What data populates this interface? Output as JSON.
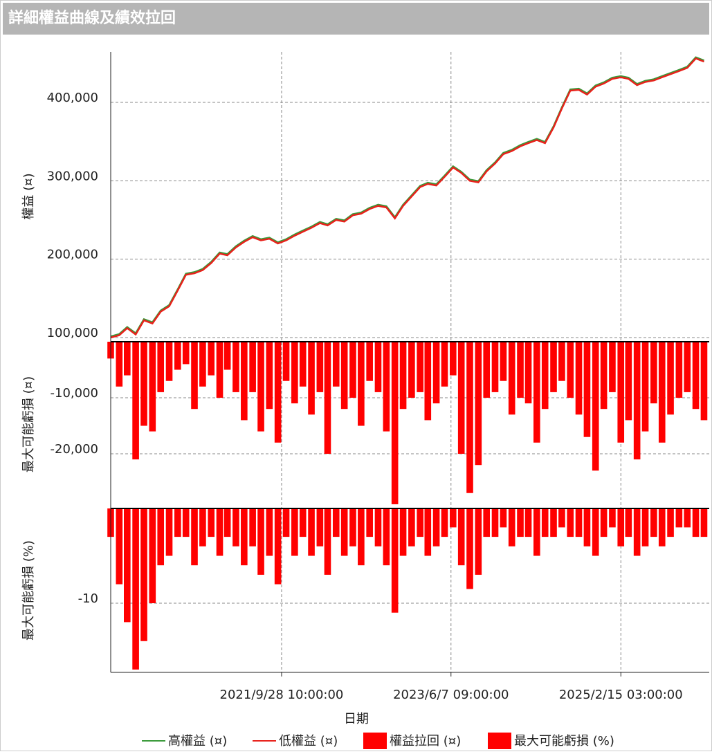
{
  "title": "詳細權益曲線及績效拉回",
  "chart_data": [
    {
      "type": "line",
      "ylabel": "權益 (¤)",
      "x": [
        "2020-01-15T00:00",
        "2020-02-15T00:00",
        "2020-03-15T00:00",
        "2020-04-15T00:00",
        "2020-05-15T00:00",
        "2020-06-15T00:00",
        "2020-07-15T00:00",
        "2020-08-15T00:00",
        "2020-09-15T00:00",
        "2020-10-15T00:00",
        "2020-11-15T00:00",
        "2020-12-15T00:00",
        "2021-01-15T00:00",
        "2021-02-15T00:00",
        "2021-03-15T00:00",
        "2021-04-15T00:00",
        "2021-05-15T00:00",
        "2021-06-15T00:00",
        "2021-07-15T00:00",
        "2021-08-15T00:00",
        "2021-09-15T00:00",
        "2021-10-15T00:00",
        "2021-11-15T00:00",
        "2021-12-15T00:00",
        "2022-01-15T00:00",
        "2022-02-15T00:00",
        "2022-03-15T00:00",
        "2022-04-15T00:00",
        "2022-05-15T00:00",
        "2022-06-15T00:00",
        "2022-07-15T00:00",
        "2022-08-15T00:00",
        "2022-09-15T00:00",
        "2022-10-15T00:00",
        "2022-11-15T00:00",
        "2022-12-15T00:00",
        "2023-01-15T00:00",
        "2023-02-15T00:00",
        "2023-03-15T00:00",
        "2023-04-15T00:00",
        "2023-05-15T00:00",
        "2023-06-15T00:00",
        "2023-07-15T00:00",
        "2023-08-15T00:00",
        "2023-09-15T00:00",
        "2023-10-15T00:00",
        "2023-11-15T00:00",
        "2023-12-15T00:00",
        "2024-01-15T00:00",
        "2024-02-15T00:00",
        "2024-03-15T00:00",
        "2024-04-15T00:00",
        "2024-05-15T00:00",
        "2024-06-15T00:00",
        "2024-07-15T00:00",
        "2024-08-15T00:00",
        "2024-09-15T00:00",
        "2024-10-15T00:00",
        "2024-11-15T00:00",
        "2024-12-15T00:00",
        "2025-01-15T00:00",
        "2025-02-15T00:00",
        "2025-03-15T00:00",
        "2025-04-15T00:00",
        "2025-05-15T00:00",
        "2025-06-15T00:00",
        "2025-07-15T00:00",
        "2025-08-15T00:00",
        "2025-09-15T00:00",
        "2025-10-15T00:00",
        "2025-11-15T00:00",
        "2025-12-15T00:00"
      ],
      "series": [
        {
          "name": "高權益 (¤)",
          "color": "#3a9a3a",
          "values": [
            101500,
            104500,
            113500,
            105500,
            123500,
            119500,
            134500,
            141500,
            161500,
            181500,
            183500,
            187500,
            196500,
            208500,
            206500,
            216500,
            223500,
            229500,
            225500,
            227500,
            221500,
            225500,
            231500,
            236500,
            241500,
            247500,
            244500,
            251500,
            249500,
            257500,
            259500,
            265500,
            269500,
            267500,
            253500,
            269500,
            281500,
            293500,
            297500,
            295500,
            306500,
            318500,
            311500,
            301500,
            299500,
            313500,
            323500,
            335500,
            339500,
            345500,
            349500,
            353500,
            349500,
            369500,
            393500,
            416500,
            417500,
            411500,
            421500,
            425500,
            431500,
            433500,
            431500,
            423500,
            427500,
            429500,
            433500,
            437500,
            441500,
            445500,
            457500,
            453500
          ]
        },
        {
          "name": "低權益 (¤)",
          "color": "#e8211b",
          "values": [
            100000,
            103000,
            112000,
            104000,
            122000,
            118000,
            133000,
            140000,
            160000,
            180000,
            182000,
            186000,
            195000,
            207000,
            205000,
            215000,
            222000,
            228000,
            224000,
            226000,
            220000,
            224000,
            230000,
            235000,
            240000,
            246000,
            243000,
            250000,
            248000,
            256000,
            258000,
            264000,
            268000,
            266000,
            252000,
            268000,
            280000,
            292000,
            296000,
            294000,
            305000,
            317000,
            310000,
            300000,
            298000,
            312000,
            322000,
            334000,
            338000,
            344000,
            348000,
            352000,
            348000,
            368000,
            392000,
            415000,
            416000,
            410000,
            420000,
            424000,
            430000,
            432000,
            430000,
            422000,
            426000,
            428000,
            432000,
            436000,
            440000,
            444000,
            456000,
            452000
          ]
        }
      ],
      "ylim": [
        95600,
        464400
      ],
      "yticks": [
        {
          "value": 100000,
          "label": "100,000"
        },
        {
          "value": 200000,
          "label": "200,000"
        },
        {
          "value": 300000,
          "label": "300,000"
        },
        {
          "value": 400000,
          "label": "400,000"
        }
      ]
    },
    {
      "type": "bar",
      "ylabel": "最大可能虧損 (¤)",
      "x": [
        "2020-01-15T00:00",
        "2020-02-15T00:00",
        "2020-03-15T00:00",
        "2020-04-15T00:00",
        "2020-05-15T00:00",
        "2020-06-15T00:00",
        "2020-07-15T00:00",
        "2020-08-15T00:00",
        "2020-09-15T00:00",
        "2020-10-15T00:00",
        "2020-11-15T00:00",
        "2020-12-15T00:00",
        "2021-01-15T00:00",
        "2021-02-15T00:00",
        "2021-03-15T00:00",
        "2021-04-15T00:00",
        "2021-05-15T00:00",
        "2021-06-15T00:00",
        "2021-07-15T00:00",
        "2021-08-15T00:00",
        "2021-09-15T00:00",
        "2021-10-15T00:00",
        "2021-11-15T00:00",
        "2021-12-15T00:00",
        "2022-01-15T00:00",
        "2022-02-15T00:00",
        "2022-03-15T00:00",
        "2022-04-15T00:00",
        "2022-05-15T00:00",
        "2022-06-15T00:00",
        "2022-07-15T00:00",
        "2022-08-15T00:00",
        "2022-09-15T00:00",
        "2022-10-15T00:00",
        "2022-11-15T00:00",
        "2022-12-15T00:00",
        "2023-01-15T00:00",
        "2023-02-15T00:00",
        "2023-03-15T00:00",
        "2023-04-15T00:00",
        "2023-05-15T00:00",
        "2023-06-15T00:00",
        "2023-07-15T00:00",
        "2023-08-15T00:00",
        "2023-09-15T00:00",
        "2023-10-15T00:00",
        "2023-11-15T00:00",
        "2023-12-15T00:00",
        "2024-01-15T00:00",
        "2024-02-15T00:00",
        "2024-03-15T00:00",
        "2024-04-15T00:00",
        "2024-05-15T00:00",
        "2024-06-15T00:00",
        "2024-07-15T00:00",
        "2024-08-15T00:00",
        "2024-09-15T00:00",
        "2024-10-15T00:00",
        "2024-11-15T00:00",
        "2024-12-15T00:00",
        "2025-01-15T00:00",
        "2025-02-15T00:00",
        "2025-03-15T00:00",
        "2025-04-15T00:00",
        "2025-05-15T00:00",
        "2025-06-15T00:00",
        "2025-07-15T00:00",
        "2025-08-15T00:00",
        "2025-09-15T00:00",
        "2025-10-15T00:00",
        "2025-11-15T00:00",
        "2025-12-15T00:00"
      ],
      "series": [
        {
          "name": "權益拉回 (¤)",
          "color": "#ff0000",
          "values": [
            -3000,
            -8000,
            -6000,
            -21000,
            -15000,
            -16000,
            -9000,
            -7000,
            -5000,
            -4000,
            -12000,
            -8000,
            -6000,
            -10000,
            -5000,
            -9000,
            -14000,
            -9000,
            -16000,
            -12000,
            -18000,
            -7000,
            -11000,
            -8000,
            -13000,
            -9000,
            -20000,
            -8000,
            -12000,
            -10000,
            -15000,
            -7000,
            -9000,
            -16000,
            -29000,
            -12000,
            -10000,
            -9000,
            -14000,
            -11000,
            -8000,
            -6000,
            -20000,
            -27000,
            -22000,
            -10000,
            -9000,
            -7000,
            -13000,
            -10000,
            -11000,
            -18000,
            -12000,
            -9000,
            -7000,
            -10000,
            -13000,
            -17000,
            -23000,
            -12000,
            -9000,
            -18000,
            -14000,
            -21000,
            -16000,
            -11000,
            -18000,
            -13000,
            -10000,
            -9000,
            -12000,
            -14000
          ]
        }
      ],
      "ylim": [
        -29500,
        0
      ],
      "yticks": [
        {
          "value": -10000,
          "label": "-10,000"
        },
        {
          "value": -20000,
          "label": "-20,000"
        }
      ]
    },
    {
      "type": "bar",
      "ylabel": "最大可能虧損 (%)",
      "xlabel": "日期",
      "x": [
        "2020-01-15T00:00",
        "2020-02-15T00:00",
        "2020-03-15T00:00",
        "2020-04-15T00:00",
        "2020-05-15T00:00",
        "2020-06-15T00:00",
        "2020-07-15T00:00",
        "2020-08-15T00:00",
        "2020-09-15T00:00",
        "2020-10-15T00:00",
        "2020-11-15T00:00",
        "2020-12-15T00:00",
        "2021-01-15T00:00",
        "2021-02-15T00:00",
        "2021-03-15T00:00",
        "2021-04-15T00:00",
        "2021-05-15T00:00",
        "2021-06-15T00:00",
        "2021-07-15T00:00",
        "2021-08-15T00:00",
        "2021-09-15T00:00",
        "2021-10-15T00:00",
        "2021-11-15T00:00",
        "2021-12-15T00:00",
        "2022-01-15T00:00",
        "2022-02-15T00:00",
        "2022-03-15T00:00",
        "2022-04-15T00:00",
        "2022-05-15T00:00",
        "2022-06-15T00:00",
        "2022-07-15T00:00",
        "2022-08-15T00:00",
        "2022-09-15T00:00",
        "2022-10-15T00:00",
        "2022-11-15T00:00",
        "2022-12-15T00:00",
        "2023-01-15T00:00",
        "2023-02-15T00:00",
        "2023-03-15T00:00",
        "2023-04-15T00:00",
        "2023-05-15T00:00",
        "2023-06-15T00:00",
        "2023-07-15T00:00",
        "2023-08-15T00:00",
        "2023-09-15T00:00",
        "2023-10-15T00:00",
        "2023-11-15T00:00",
        "2023-12-15T00:00",
        "2024-01-15T00:00",
        "2024-02-15T00:00",
        "2024-03-15T00:00",
        "2024-04-15T00:00",
        "2024-05-15T00:00",
        "2024-06-15T00:00",
        "2024-07-15T00:00",
        "2024-08-15T00:00",
        "2024-09-15T00:00",
        "2024-10-15T00:00",
        "2024-11-15T00:00",
        "2024-12-15T00:00",
        "2025-01-15T00:00",
        "2025-02-15T00:00",
        "2025-03-15T00:00",
        "2025-04-15T00:00",
        "2025-05-15T00:00",
        "2025-06-15T00:00",
        "2025-07-15T00:00",
        "2025-08-15T00:00",
        "2025-09-15T00:00",
        "2025-10-15T00:00",
        "2025-11-15T00:00",
        "2025-12-15T00:00"
      ],
      "series": [
        {
          "name": "最大可能虧損 (%)",
          "color": "#ff0000",
          "values": [
            -3,
            -8,
            -12,
            -17,
            -14,
            -10,
            -6,
            -5,
            -3,
            -3,
            -6,
            -4,
            -3,
            -5,
            -3,
            -4,
            -6,
            -4,
            -7,
            -5,
            -8,
            -3,
            -5,
            -3,
            -5,
            -4,
            -7,
            -3,
            -5,
            -4,
            -6,
            -3,
            -4,
            -6,
            -11,
            -5,
            -4,
            -3,
            -5,
            -4,
            -3,
            -2,
            -6,
            -8.5,
            -7,
            -3,
            -3,
            -2,
            -4,
            -3,
            -3,
            -5,
            -3,
            -3,
            -2,
            -3,
            -3,
            -4,
            -5,
            -3,
            -2,
            -4,
            -3,
            -5,
            -4,
            -3,
            -4,
            -3,
            -2,
            -2,
            -3,
            -3
          ]
        }
      ],
      "ylim": [
        -17.3,
        0
      ],
      "yticks": [
        -10
      ],
      "xlim": [
        "2020-01-15T00:00",
        "2026-01-03T00:00"
      ],
      "xticks": [
        {
          "value": "2021-09-28T10:00",
          "label": "2021/9/28 10:00:00"
        },
        {
          "value": "2023-06-07T09:00",
          "label": "2023/6/7 09:00:00"
        },
        {
          "value": "2025-02-15T03:00",
          "label": "2025/2/15 03:00:00"
        }
      ],
      "grid": true
    }
  ]
}
